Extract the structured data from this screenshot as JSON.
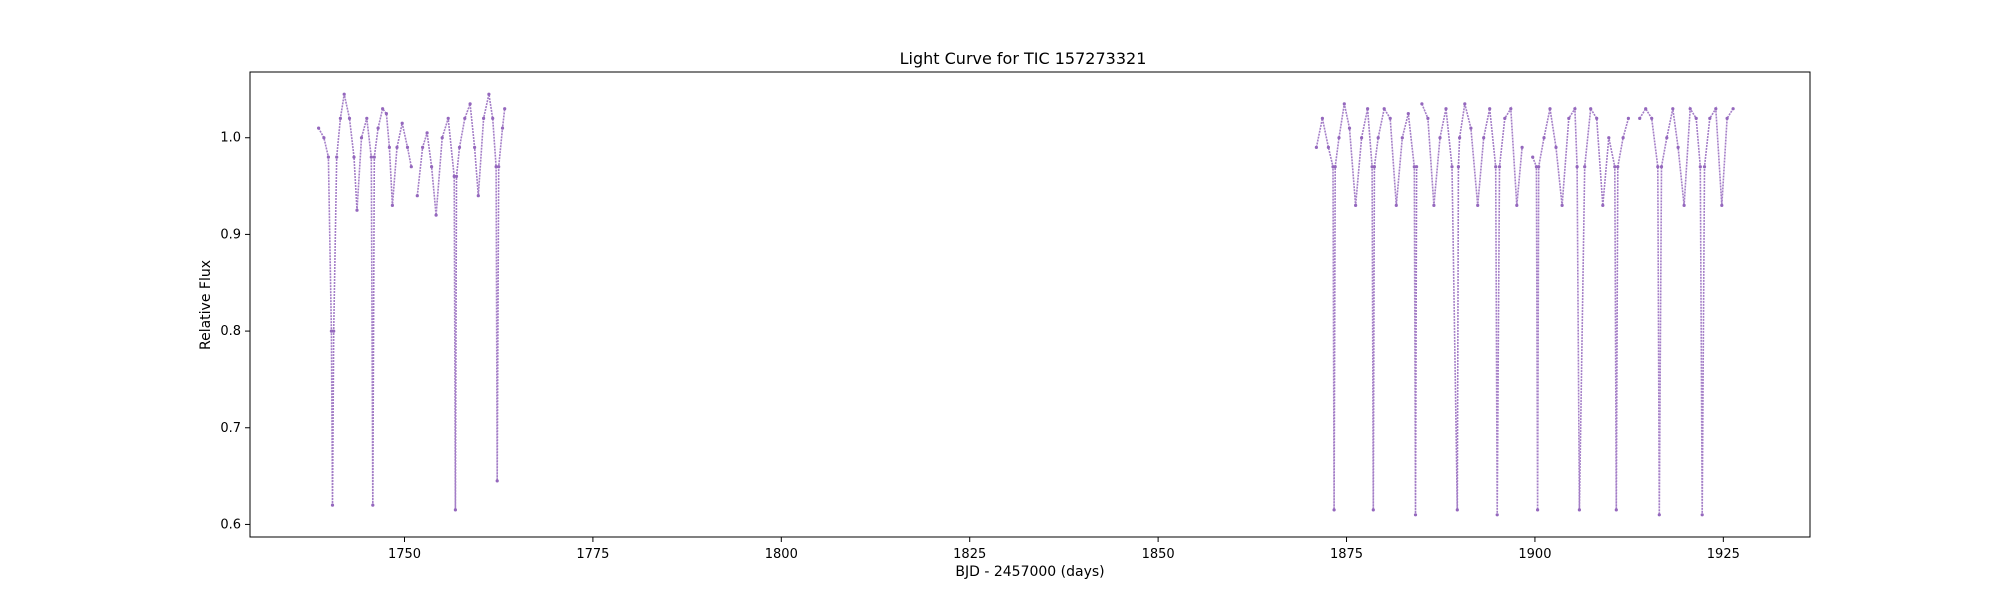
{
  "chart_data": {
    "type": "scatter",
    "title": "Light Curve for TIC 157273321",
    "xlabel": "BJD - 2457000 (days)",
    "ylabel": "Relative Flux",
    "xlim": [
      1729.5,
      1936.5
    ],
    "ylim": [
      0.587,
      1.068
    ],
    "xticks": [
      1750,
      1775,
      1800,
      1825,
      1850,
      1875,
      1900,
      1925
    ],
    "yticks": [
      0.6,
      0.7,
      0.8,
      0.9,
      1.0
    ],
    "xtick_labels": [
      "1750",
      "1775",
      "1800",
      "1825",
      "1850",
      "1875",
      "1900",
      "1925"
    ],
    "ytick_labels": [
      "0.6",
      "0.7",
      "0.8",
      "0.9",
      "1.0"
    ],
    "grid": false,
    "marker_color": "#9467bd",
    "series": [
      {
        "segments": [
          {
            "x": [
              1738.6,
              1739.3,
              1739.9,
              1740.3,
              1740.45,
              1740.6,
              1741.0,
              1741.5,
              1742.0,
              1742.7,
              1743.3,
              1743.7,
              1744.3,
              1745.0,
              1745.6,
              1745.8,
              1746.0,
              1746.5,
              1747.1,
              1747.6,
              1748.0,
              1748.4,
              1749.0,
              1749.7,
              1750.4,
              1750.9
            ],
            "y": [
              1.01,
              1.0,
              0.98,
              0.8,
              0.62,
              0.8,
              0.98,
              1.02,
              1.045,
              1.02,
              0.98,
              0.925,
              1.0,
              1.02,
              0.98,
              0.62,
              0.98,
              1.01,
              1.03,
              1.025,
              0.99,
              0.93,
              0.99,
              1.015,
              0.99,
              0.97
            ]
          },
          {
            "x": [
              1751.7,
              1752.4,
              1753.0,
              1753.6,
              1754.2,
              1755.0,
              1755.8,
              1756.6,
              1756.75,
              1756.9,
              1757.3,
              1758.0,
              1758.7,
              1759.3,
              1759.8,
              1760.5,
              1761.2,
              1761.7,
              1762.15,
              1762.3,
              1762.5,
              1763.0,
              1763.3
            ],
            "y": [
              0.94,
              0.99,
              1.005,
              0.97,
              0.92,
              1.0,
              1.02,
              0.96,
              0.615,
              0.96,
              0.99,
              1.02,
              1.035,
              0.99,
              0.94,
              1.02,
              1.045,
              1.02,
              0.97,
              0.645,
              0.97,
              1.01,
              1.03
            ]
          },
          {
            "x": [
              1871.0,
              1871.8,
              1872.6,
              1873.2,
              1873.35,
              1873.5,
              1874.0,
              1874.7,
              1875.4,
              1876.2,
              1877.0,
              1877.8,
              1878.4,
              1878.55,
              1878.7,
              1879.2,
              1880.0,
              1880.8,
              1881.6,
              1882.4,
              1883.2,
              1884.0,
              1884.15,
              1884.3
            ],
            "y": [
              0.99,
              1.02,
              0.99,
              0.97,
              0.615,
              0.97,
              1.0,
              1.035,
              1.01,
              0.93,
              1.0,
              1.03,
              0.97,
              0.615,
              0.97,
              1.0,
              1.03,
              1.02,
              0.93,
              1.0,
              1.025,
              0.97,
              0.61,
              0.97
            ]
          },
          {
            "x": [
              1885.0,
              1885.8,
              1886.6,
              1887.4,
              1888.2,
              1889.0,
              1889.7,
              1889.85,
              1890.0,
              1890.7,
              1891.5,
              1892.4,
              1893.2,
              1894.0,
              1894.8,
              1895.0,
              1895.3,
              1896.0,
              1896.8,
              1897.6,
              1898.3
            ],
            "y": [
              1.035,
              1.02,
              0.93,
              1.0,
              1.03,
              0.97,
              0.615,
              0.97,
              1.0,
              1.035,
              1.01,
              0.93,
              1.0,
              1.03,
              0.97,
              0.61,
              0.97,
              1.02,
              1.03,
              0.93,
              0.99
            ]
          },
          {
            "x": [
              1899.7,
              1900.2,
              1900.35,
              1900.5,
              1901.2,
              1902.0,
              1902.8,
              1903.6,
              1904.5,
              1905.3,
              1905.6,
              1905.9,
              1906.6,
              1907.4,
              1908.2,
              1909.0,
              1909.8,
              1910.6,
              1910.8,
              1911.0,
              1911.7,
              1912.4
            ],
            "y": [
              0.98,
              0.97,
              0.615,
              0.97,
              1.0,
              1.03,
              0.99,
              0.93,
              1.02,
              1.03,
              0.97,
              0.615,
              0.97,
              1.03,
              1.02,
              0.93,
              1.0,
              0.97,
              0.615,
              0.97,
              1.0,
              1.02
            ]
          },
          {
            "x": [
              1913.9,
              1914.7,
              1915.5,
              1916.3,
              1916.5,
              1916.8,
              1917.5,
              1918.3,
              1919.0,
              1919.8,
              1920.6,
              1921.4,
              1921.95,
              1922.2,
              1922.5,
              1923.2,
              1924.0,
              1924.8,
              1925.5,
              1926.3
            ],
            "y": [
              1.02,
              1.03,
              1.02,
              0.97,
              0.61,
              0.97,
              1.0,
              1.03,
              0.99,
              0.93,
              1.03,
              1.02,
              0.97,
              0.61,
              0.97,
              1.02,
              1.03,
              0.93,
              1.02,
              1.03
            ]
          }
        ]
      }
    ]
  }
}
